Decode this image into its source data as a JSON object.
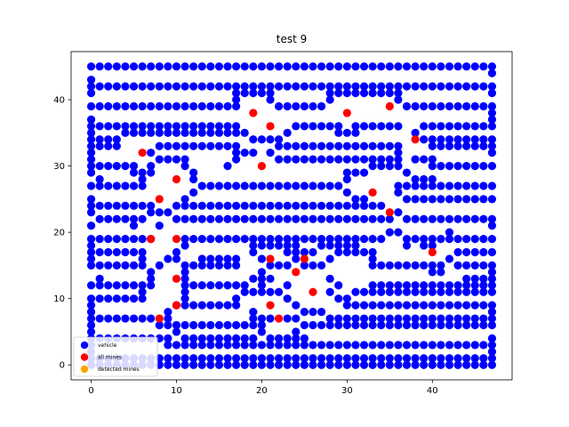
{
  "chart_data": {
    "type": "scatter",
    "title": "test 9",
    "xlabel": "",
    "ylabel": "",
    "xlim": [
      -2.35,
      49.35
    ],
    "ylim": [
      -2.25,
      47.25
    ],
    "xticks": [
      0,
      10,
      20,
      30,
      40
    ],
    "yticks": [
      0,
      10,
      20,
      30,
      40
    ],
    "grid": false,
    "legend_position": "lower-left",
    "colors": {
      "vehicle": "#0000ff",
      "all_mines": "#ff0000",
      "detected_mines": "#ffa500"
    },
    "series": [
      {
        "name": "vehicle",
        "color": "#0000ff",
        "rows": [
          {
            "y": 45,
            "x_ranges": [
              [
                0,
                47
              ]
            ]
          },
          {
            "y": 44,
            "x_ranges": [
              [
                47,
                47
              ]
            ]
          },
          {
            "y": 43,
            "x_ranges": [
              [
                0,
                0
              ]
            ]
          },
          {
            "y": 42,
            "x_ranges": [
              [
                0,
                47
              ]
            ]
          },
          {
            "y": 41,
            "x_ranges": [
              [
                0,
                0
              ],
              [
                17,
                21
              ],
              [
                28,
                36
              ],
              [
                47,
                47
              ]
            ]
          },
          {
            "y": 40,
            "x_ranges": [
              [
                17,
                17
              ],
              [
                21,
                21
              ],
              [
                28,
                28
              ],
              [
                36,
                36
              ]
            ]
          },
          {
            "y": 39,
            "x_ranges": [
              [
                0,
                17
              ],
              [
                22,
                27
              ],
              [
                37,
                47
              ]
            ]
          },
          {
            "y": 38,
            "x_ranges": [
              [
                47,
                47
              ]
            ]
          },
          {
            "y": 37,
            "x_ranges": [
              [
                0,
                0
              ],
              [
                47,
                47
              ]
            ]
          },
          {
            "y": 36,
            "x_ranges": [
              [
                0,
                17
              ],
              [
                24,
                29
              ],
              [
                31,
                36
              ],
              [
                39,
                47
              ]
            ]
          },
          {
            "y": 35,
            "x_ranges": [
              [
                0,
                0
              ],
              [
                4,
                17
              ],
              [
                18,
                18
              ],
              [
                23,
                23
              ],
              [
                29,
                31
              ],
              [
                38,
                38
              ]
            ]
          },
          {
            "y": 34,
            "x_ranges": [
              [
                0,
                3
              ],
              [
                19,
                22
              ],
              [
                39,
                47
              ]
            ]
          },
          {
            "y": 33,
            "x_ranges": [
              [
                0,
                3
              ],
              [
                8,
                17
              ],
              [
                22,
                36
              ],
              [
                40,
                47
              ]
            ]
          },
          {
            "y": 32,
            "x_ranges": [
              [
                0,
                0
              ],
              [
                7,
                7
              ],
              [
                17,
                19
              ],
              [
                21,
                21
              ],
              [
                36,
                36
              ],
              [
                47,
                47
              ]
            ]
          },
          {
            "y": 31,
            "x_ranges": [
              [
                0,
                0
              ],
              [
                8,
                11
              ],
              [
                17,
                17
              ],
              [
                22,
                36
              ],
              [
                38,
                40
              ]
            ]
          },
          {
            "y": 30,
            "x_ranges": [
              [
                0,
                5
              ],
              [
                7,
                7
              ],
              [
                11,
                11
              ],
              [
                16,
                16
              ],
              [
                33,
                36
              ],
              [
                40,
                47
              ]
            ]
          },
          {
            "y": 29,
            "x_ranges": [
              [
                0,
                0
              ],
              [
                5,
                7
              ],
              [
                12,
                12
              ],
              [
                30,
                32
              ],
              [
                37,
                37
              ]
            ]
          },
          {
            "y": 28,
            "x_ranges": [
              [
                1,
                1
              ],
              [
                6,
                6
              ],
              [
                12,
                12
              ],
              [
                30,
                30
              ],
              [
                38,
                40
              ]
            ]
          },
          {
            "y": 27,
            "x_ranges": [
              [
                0,
                6
              ],
              [
                13,
                29
              ],
              [
                36,
                47
              ]
            ]
          },
          {
            "y": 26,
            "x_ranges": [
              [
                12,
                12
              ],
              [
                30,
                30
              ],
              [
                36,
                36
              ]
            ]
          },
          {
            "y": 25,
            "x_ranges": [
              [
                0,
                0
              ],
              [
                11,
                11
              ],
              [
                31,
                32
              ],
              [
                37,
                47
              ]
            ]
          },
          {
            "y": 24,
            "x_ranges": [
              [
                0,
                7
              ],
              [
                10,
                34
              ]
            ]
          },
          {
            "y": 23,
            "x_ranges": [
              [
                0,
                0
              ],
              [
                7,
                9
              ],
              [
                36,
                36
              ]
            ]
          },
          {
            "y": 22,
            "x_ranges": [
              [
                1,
                6
              ],
              [
                10,
                35
              ],
              [
                37,
                47
              ]
            ]
          },
          {
            "y": 21,
            "x_ranges": [
              [
                0,
                0
              ],
              [
                5,
                5
              ],
              [
                8,
                8
              ],
              [
                47,
                47
              ]
            ]
          },
          {
            "y": 20,
            "x_ranges": [
              [
                35,
                36
              ],
              [
                42,
                42
              ]
            ]
          },
          {
            "y": 19,
            "x_ranges": [
              [
                0,
                7
              ],
              [
                11,
                34
              ],
              [
                37,
                47
              ]
            ]
          },
          {
            "y": 18,
            "x_ranges": [
              [
                0,
                0
              ],
              [
                11,
                11
              ],
              [
                19,
                24
              ],
              [
                27,
                31
              ],
              [
                37,
                37
              ],
              [
                39,
                40
              ]
            ]
          },
          {
            "y": 17,
            "x_ranges": [
              [
                0,
                6
              ],
              [
                10,
                10
              ],
              [
                19,
                19
              ],
              [
                23,
                26
              ],
              [
                29,
                33
              ],
              [
                43,
                47
              ]
            ]
          },
          {
            "y": 16,
            "x_ranges": [
              [
                0,
                0
              ],
              [
                6,
                6
              ],
              [
                9,
                10
              ],
              [
                13,
                17
              ],
              [
                20,
                20
              ],
              [
                24,
                24
              ],
              [
                28,
                28
              ],
              [
                33,
                33
              ],
              [
                42,
                42
              ]
            ]
          },
          {
            "y": 15,
            "x_ranges": [
              [
                0,
                6
              ],
              [
                8,
                8
              ],
              [
                11,
                17
              ],
              [
                21,
                23
              ],
              [
                25,
                27
              ],
              [
                33,
                41
              ],
              [
                43,
                47
              ]
            ]
          },
          {
            "y": 14,
            "x_ranges": [
              [
                7,
                7
              ],
              [
                11,
                11
              ],
              [
                20,
                20
              ],
              [
                40,
                41
              ],
              [
                47,
                47
              ]
            ]
          },
          {
            "y": 13,
            "x_ranges": [
              [
                1,
                1
              ],
              [
                7,
                7
              ],
              [
                11,
                11
              ],
              [
                19,
                21
              ],
              [
                28,
                28
              ],
              [
                44,
                47
              ]
            ]
          },
          {
            "y": 12,
            "x_ranges": [
              [
                0,
                7
              ],
              [
                11,
                18
              ],
              [
                20,
                20
              ],
              [
                23,
                23
              ],
              [
                29,
                29
              ],
              [
                33,
                47
              ]
            ]
          },
          {
            "y": 11,
            "x_ranges": [
              [
                6,
                6
              ],
              [
                11,
                11
              ],
              [
                18,
                22
              ],
              [
                28,
                28
              ],
              [
                31,
                47
              ]
            ]
          },
          {
            "y": 10,
            "x_ranges": [
              [
                0,
                6
              ],
              [
                11,
                11
              ],
              [
                17,
                17
              ],
              [
                23,
                23
              ],
              [
                29,
                30
              ]
            ]
          },
          {
            "y": 9,
            "x_ranges": [
              [
                0,
                0
              ],
              [
                10,
                17
              ],
              [
                24,
                24
              ],
              [
                30,
                47
              ]
            ]
          },
          {
            "y": 8,
            "x_ranges": [
              [
                0,
                0
              ],
              [
                9,
                9
              ],
              [
                19,
                19
              ],
              [
                25,
                27
              ],
              [
                47,
                47
              ]
            ]
          },
          {
            "y": 7,
            "x_ranges": [
              [
                0,
                7
              ],
              [
                9,
                9
              ],
              [
                19,
                21
              ],
              [
                23,
                24
              ],
              [
                28,
                47
              ]
            ]
          },
          {
            "y": 6,
            "x_ranges": [
              [
                0,
                0
              ],
              [
                8,
                20
              ],
              [
                25,
                47
              ]
            ]
          },
          {
            "y": 5,
            "x_ranges": [
              [
                0,
                0
              ],
              [
                10,
                10
              ],
              [
                20,
                20
              ],
              [
                24,
                24
              ]
            ]
          },
          {
            "y": 4,
            "x_ranges": [
              [
                0,
                9
              ],
              [
                11,
                19
              ],
              [
                21,
                25
              ],
              [
                47,
                47
              ]
            ]
          },
          {
            "y": 3,
            "x_ranges": [
              [
                0,
                0
              ],
              [
                9,
                47
              ]
            ]
          },
          {
            "y": 2,
            "x_ranges": [
              [
                0,
                0
              ],
              [
                47,
                47
              ]
            ]
          },
          {
            "y": 1,
            "x_ranges": [
              [
                0,
                47
              ]
            ]
          },
          {
            "y": 0,
            "x_ranges": [
              [
                0,
                47
              ]
            ]
          }
        ]
      },
      {
        "name": "all mines",
        "color": "#ff0000",
        "points": [
          [
            19,
            38
          ],
          [
            21,
            36
          ],
          [
            30,
            38
          ],
          [
            35,
            39
          ],
          [
            38,
            34
          ],
          [
            6,
            32
          ],
          [
            20,
            30
          ],
          [
            10,
            28
          ],
          [
            33,
            26
          ],
          [
            8,
            25
          ],
          [
            35,
            23
          ],
          [
            7,
            19
          ],
          [
            10,
            19
          ],
          [
            40,
            17
          ],
          [
            21,
            16
          ],
          [
            25,
            16
          ],
          [
            24,
            14
          ],
          [
            10,
            13
          ],
          [
            26,
            11
          ],
          [
            10,
            9
          ],
          [
            21,
            9
          ],
          [
            8,
            7
          ],
          [
            22,
            7
          ]
        ]
      },
      {
        "name": "detected mines",
        "color": "#ffa500",
        "points": []
      }
    ]
  }
}
